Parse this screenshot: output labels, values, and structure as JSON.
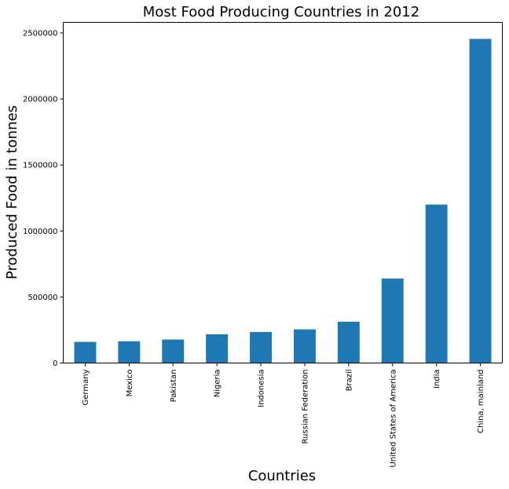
{
  "chart_data": {
    "type": "bar",
    "title": "Most Food Producing Countries in 2012",
    "xlabel": "Countries",
    "ylabel": "Produced Food in tonnes",
    "categories": [
      "Germany",
      "Mexico",
      "Pakistan",
      "Nigeria",
      "Indonesia",
      "Russian Federation",
      "Brazil",
      "United States of America",
      "India",
      "China, mainland"
    ],
    "values": [
      160000,
      165000,
      178000,
      218000,
      235000,
      255000,
      313000,
      640000,
      1200000,
      2455000
    ],
    "ylim": [
      0,
      2580000
    ],
    "yticks": [
      0,
      500000,
      1000000,
      1500000,
      2000000,
      2500000
    ],
    "ytick_labels": [
      "0",
      "500000",
      "1000000",
      "1500000",
      "2000000",
      "2500000"
    ],
    "bar_color": "#1f77b4",
    "grid": false,
    "legend": "none"
  }
}
